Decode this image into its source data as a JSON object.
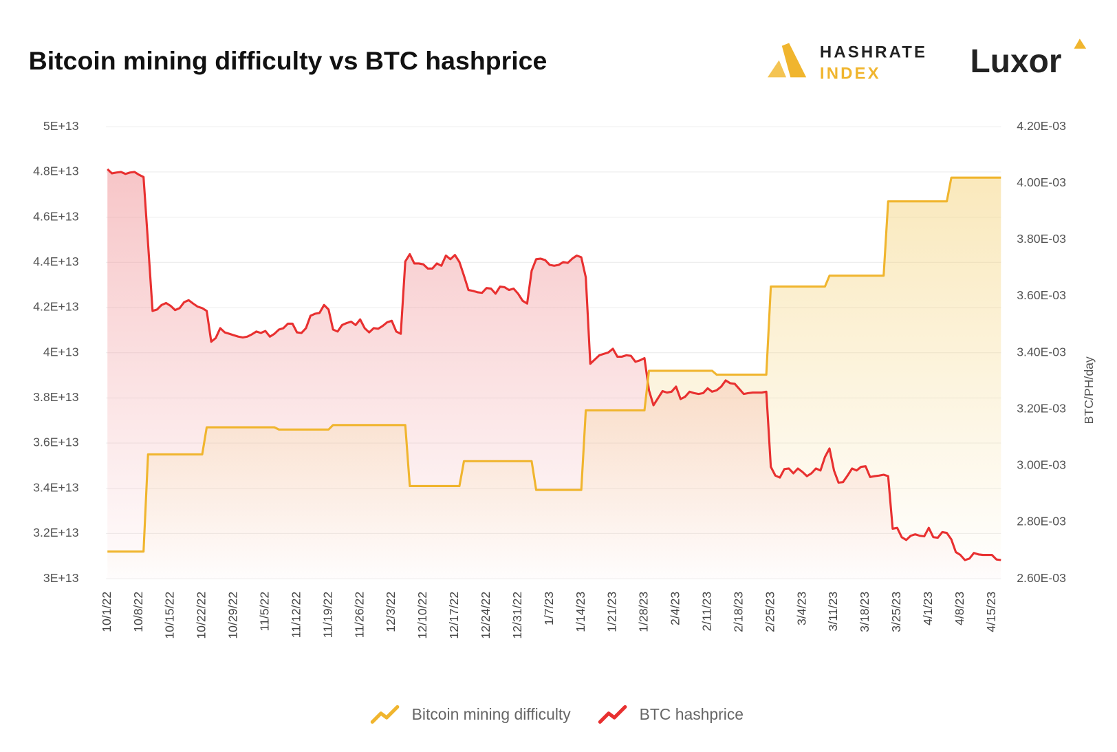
{
  "logos": {
    "hashrate": "HASHRATE",
    "index": "INDEX",
    "luxor": "Luxor"
  },
  "chart_data": {
    "type": "line",
    "title": "Bitcoin mining difficulty vs BTC hashprice",
    "y2_label": "BTC/PH/day",
    "grid": true,
    "legend": "bottom",
    "categories": [
      "10/1/22",
      null,
      null,
      null,
      null,
      null,
      null,
      "10/8/22",
      null,
      null,
      null,
      null,
      null,
      null,
      "10/15/22",
      null,
      null,
      null,
      null,
      null,
      null,
      "10/22/22",
      null,
      null,
      null,
      null,
      null,
      null,
      "10/29/22",
      null,
      null,
      null,
      null,
      null,
      null,
      "11/5/22",
      null,
      null,
      null,
      null,
      null,
      null,
      "11/12/22",
      null,
      null,
      null,
      null,
      null,
      null,
      "11/19/22",
      null,
      null,
      null,
      null,
      null,
      null,
      "11/26/22",
      null,
      null,
      null,
      null,
      null,
      null,
      "12/3/22",
      null,
      null,
      null,
      null,
      null,
      null,
      "12/10/22",
      null,
      null,
      null,
      null,
      null,
      null,
      "12/17/22",
      null,
      null,
      null,
      null,
      null,
      null,
      "12/24/22",
      null,
      null,
      null,
      null,
      null,
      null,
      "12/31/22",
      null,
      null,
      null,
      null,
      null,
      null,
      "1/7/23",
      null,
      null,
      null,
      null,
      null,
      null,
      "1/14/23",
      null,
      null,
      null,
      null,
      null,
      null,
      "1/21/23",
      null,
      null,
      null,
      null,
      null,
      null,
      "1/28/23",
      null,
      null,
      null,
      null,
      null,
      null,
      "2/4/23",
      null,
      null,
      null,
      null,
      null,
      null,
      "2/11/23",
      null,
      null,
      null,
      null,
      null,
      null,
      "2/18/23",
      null,
      null,
      null,
      null,
      null,
      null,
      "2/25/23",
      null,
      null,
      null,
      null,
      null,
      null,
      "3/4/23",
      null,
      null,
      null,
      null,
      null,
      null,
      "3/11/23",
      null,
      null,
      null,
      null,
      null,
      null,
      "3/18/23",
      null,
      null,
      null,
      null,
      null,
      null,
      "3/25/23",
      null,
      null,
      null,
      null,
      null,
      null,
      "4/1/23",
      null,
      null,
      null,
      null,
      null,
      null,
      "4/8/23",
      null,
      null,
      null,
      null,
      null,
      null,
      "4/15/23",
      null,
      null
    ],
    "ylim": [
      30000000000000.0,
      50000000000000.0
    ],
    "yticks": [
      {
        "value": 30000000000000.0,
        "label": "3E+13"
      },
      {
        "value": 32000000000000.0,
        "label": "3.2E+13"
      },
      {
        "value": 34000000000000.0,
        "label": "3.4E+13"
      },
      {
        "value": 36000000000000.0,
        "label": "3.6E+13"
      },
      {
        "value": 38000000000000.0,
        "label": "3.8E+13"
      },
      {
        "value": 40000000000000.0,
        "label": "4E+13"
      },
      {
        "value": 42000000000000.0,
        "label": "4.2E+13"
      },
      {
        "value": 44000000000000.0,
        "label": "4.4E+13"
      },
      {
        "value": 46000000000000.0,
        "label": "4.6E+13"
      },
      {
        "value": 48000000000000.0,
        "label": "4.8E+13"
      },
      {
        "value": 50000000000000.0,
        "label": "5E+13"
      }
    ],
    "y2lim": [
      0.0026,
      0.0042
    ],
    "y2ticks": [
      {
        "value": 0.0026,
        "label": "2.60E-03"
      },
      {
        "value": 0.0028,
        "label": "2.80E-03"
      },
      {
        "value": 0.003,
        "label": "3.00E-03"
      },
      {
        "value": 0.0032,
        "label": "3.20E-03"
      },
      {
        "value": 0.0034,
        "label": "3.40E-03"
      },
      {
        "value": 0.0036,
        "label": "3.60E-03"
      },
      {
        "value": 0.0038,
        "label": "3.80E-03"
      },
      {
        "value": 0.004,
        "label": "4.00E-03"
      },
      {
        "value": 0.0042,
        "label": "4.20E-03"
      }
    ],
    "series": [
      {
        "name": "Bitcoin mining difficulty",
        "color": "#f0b52e",
        "axis": "y",
        "values": [
          31200000000000.0,
          31200000000000.0,
          31200000000000.0,
          31200000000000.0,
          31200000000000.0,
          31200000000000.0,
          31200000000000.0,
          31200000000000.0,
          31200000000000.0,
          35500000000000.0,
          35500000000000.0,
          35500000000000.0,
          35500000000000.0,
          35500000000000.0,
          35500000000000.0,
          35500000000000.0,
          35500000000000.0,
          35500000000000.0,
          35500000000000.0,
          35500000000000.0,
          35500000000000.0,
          35500000000000.0,
          36700000000000.0,
          36700000000000.0,
          36700000000000.0,
          36700000000000.0,
          36700000000000.0,
          36700000000000.0,
          36700000000000.0,
          36700000000000.0,
          36700000000000.0,
          36700000000000.0,
          36700000000000.0,
          36700000000000.0,
          36700000000000.0,
          36700000000000.0,
          36700000000000.0,
          36700000000000.0,
          36600000000000.0,
          36600000000000.0,
          36600000000000.0,
          36600000000000.0,
          36600000000000.0,
          36600000000000.0,
          36600000000000.0,
          36600000000000.0,
          36600000000000.0,
          36600000000000.0,
          36600000000000.0,
          36600000000000.0,
          36800000000000.0,
          36800000000000.0,
          36800000000000.0,
          36800000000000.0,
          36800000000000.0,
          36800000000000.0,
          36800000000000.0,
          36800000000000.0,
          36800000000000.0,
          36800000000000.0,
          36800000000000.0,
          36800000000000.0,
          36800000000000.0,
          36800000000000.0,
          36800000000000.0,
          36800000000000.0,
          36800000000000.0,
          34100000000000.0,
          34100000000000.0,
          34100000000000.0,
          34100000000000.0,
          34100000000000.0,
          34100000000000.0,
          34100000000000.0,
          34100000000000.0,
          34100000000000.0,
          34100000000000.0,
          34100000000000.0,
          34100000000000.0,
          35200000000000.0,
          35200000000000.0,
          35200000000000.0,
          35200000000000.0,
          35200000000000.0,
          35200000000000.0,
          35200000000000.0,
          35200000000000.0,
          35200000000000.0,
          35200000000000.0,
          35200000000000.0,
          35200000000000.0,
          35200000000000.0,
          35200000000000.0,
          35200000000000.0,
          35200000000000.0,
          33930000000000.0,
          33930000000000.0,
          33930000000000.0,
          33930000000000.0,
          33930000000000.0,
          33930000000000.0,
          33930000000000.0,
          33930000000000.0,
          33930000000000.0,
          33930000000000.0,
          33930000000000.0,
          37450000000000.0,
          37450000000000.0,
          37450000000000.0,
          37450000000000.0,
          37450000000000.0,
          37450000000000.0,
          37450000000000.0,
          37450000000000.0,
          37450000000000.0,
          37450000000000.0,
          37450000000000.0,
          37450000000000.0,
          37450000000000.0,
          37450000000000.0,
          39200000000000.0,
          39200000000000.0,
          39200000000000.0,
          39200000000000.0,
          39200000000000.0,
          39200000000000.0,
          39200000000000.0,
          39200000000000.0,
          39200000000000.0,
          39200000000000.0,
          39200000000000.0,
          39200000000000.0,
          39200000000000.0,
          39200000000000.0,
          39200000000000.0,
          39030000000000.0,
          39030000000000.0,
          39030000000000.0,
          39030000000000.0,
          39030000000000.0,
          39030000000000.0,
          39030000000000.0,
          39030000000000.0,
          39030000000000.0,
          39030000000000.0,
          39030000000000.0,
          39030000000000.0,
          42930000000000.0,
          42930000000000.0,
          42930000000000.0,
          42930000000000.0,
          42930000000000.0,
          42930000000000.0,
          42930000000000.0,
          42930000000000.0,
          42930000000000.0,
          42930000000000.0,
          42930000000000.0,
          42930000000000.0,
          42930000000000.0,
          43410000000000.0,
          43410000000000.0,
          43410000000000.0,
          43410000000000.0,
          43410000000000.0,
          43410000000000.0,
          43410000000000.0,
          43410000000000.0,
          43410000000000.0,
          43410000000000.0,
          43410000000000.0,
          43410000000000.0,
          43410000000000.0,
          46700000000000.0,
          46700000000000.0,
          46700000000000.0,
          46700000000000.0,
          46700000000000.0,
          46700000000000.0,
          46700000000000.0,
          46700000000000.0,
          46700000000000.0,
          46700000000000.0,
          46700000000000.0,
          46700000000000.0,
          46700000000000.0,
          46700000000000.0,
          47750000000000.0,
          47750000000000.0,
          47750000000000.0,
          47750000000000.0,
          47750000000000.0,
          47750000000000.0,
          47750000000000.0,
          47750000000000.0,
          47750000000000.0,
          47750000000000.0,
          47750000000000.0,
          47750000000000.0
        ]
      },
      {
        "name": "BTC hashprice",
        "color": "#e83030",
        "axis": "y2",
        "values": [
          0.00405,
          0.004035,
          0.004038,
          0.00404,
          0.004033,
          0.004038,
          0.00404,
          0.00403,
          0.004022,
          0.003787,
          0.003548,
          0.003553,
          0.003569,
          0.003576,
          0.003566,
          0.003551,
          0.003558,
          0.003579,
          0.003586,
          0.003574,
          0.003563,
          0.003558,
          0.003548,
          0.003439,
          0.003452,
          0.003487,
          0.003472,
          0.003467,
          0.003462,
          0.003457,
          0.003454,
          0.003457,
          0.003465,
          0.003475,
          0.00347,
          0.003477,
          0.003457,
          0.003467,
          0.003482,
          0.003487,
          0.003503,
          0.003503,
          0.003472,
          0.00347,
          0.003487,
          0.003531,
          0.003538,
          0.003541,
          0.003569,
          0.003553,
          0.003482,
          0.003475,
          0.003498,
          0.003505,
          0.00351,
          0.003498,
          0.003518,
          0.003487,
          0.003472,
          0.003487,
          0.003485,
          0.003495,
          0.003508,
          0.003513,
          0.003475,
          0.003467,
          0.003723,
          0.003749,
          0.003716,
          0.003716,
          0.003713,
          0.003698,
          0.003698,
          0.003716,
          0.003708,
          0.003744,
          0.003731,
          0.003746,
          0.003721,
          0.003673,
          0.003622,
          0.003619,
          0.003614,
          0.003612,
          0.003629,
          0.003627,
          0.003609,
          0.003634,
          0.003632,
          0.003622,
          0.003627,
          0.003609,
          0.003584,
          0.003574,
          0.00369,
          0.003731,
          0.003733,
          0.003728,
          0.003711,
          0.003708,
          0.003711,
          0.003721,
          0.003718,
          0.003733,
          0.003744,
          0.003738,
          0.003667,
          0.003361,
          0.003376,
          0.003391,
          0.003396,
          0.003401,
          0.003414,
          0.003386,
          0.003386,
          0.003391,
          0.003389,
          0.003368,
          0.003373,
          0.003381,
          0.003267,
          0.003214,
          0.003239,
          0.003264,
          0.003259,
          0.003262,
          0.00328,
          0.003236,
          0.003244,
          0.003262,
          0.003257,
          0.003254,
          0.003257,
          0.003274,
          0.003262,
          0.003267,
          0.00328,
          0.003302,
          0.003292,
          0.00329,
          0.003272,
          0.003254,
          0.003257,
          0.003259,
          0.003259,
          0.003259,
          0.003262,
          0.002996,
          0.002965,
          0.002958,
          0.002988,
          0.00299,
          0.002973,
          0.00299,
          0.002978,
          0.002963,
          0.002973,
          0.00299,
          0.002983,
          0.003031,
          0.003061,
          0.002983,
          0.00294,
          0.002942,
          0.002965,
          0.00299,
          0.002983,
          0.002996,
          0.002998,
          0.00296,
          0.002963,
          0.002965,
          0.002968,
          0.002963,
          0.002777,
          0.00278,
          0.002747,
          0.002737,
          0.002752,
          0.002757,
          0.002752,
          0.00275,
          0.00278,
          0.002747,
          0.002745,
          0.002765,
          0.002762,
          0.002739,
          0.002694,
          0.002684,
          0.002666,
          0.002671,
          0.002691,
          0.002686,
          0.002684,
          0.002684,
          0.002684,
          0.002668,
          0.002666
        ]
      }
    ]
  }
}
